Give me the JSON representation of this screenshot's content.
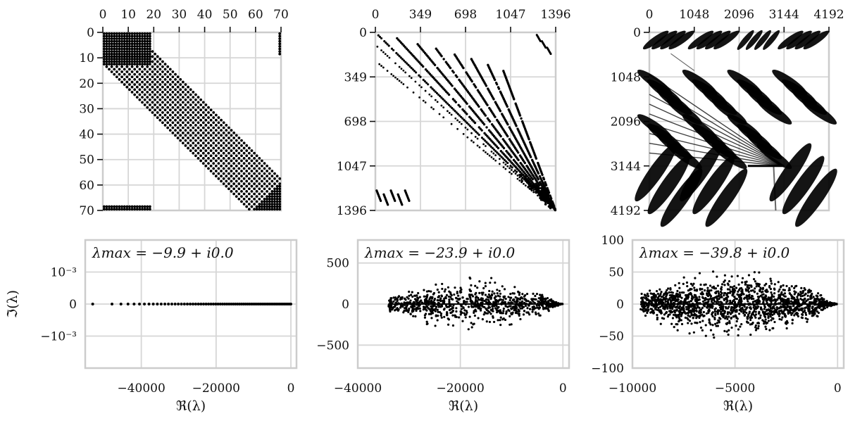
{
  "chart_data": [
    {
      "type": "heatmap",
      "subtype": "sparsity-pattern",
      "n": 70,
      "x_ticks": [
        "0",
        "10",
        "20",
        "30",
        "40",
        "50",
        "60",
        "70"
      ],
      "y_ticks": [
        "0",
        "10",
        "20",
        "30",
        "40",
        "50",
        "60",
        "70"
      ],
      "tick_values": [
        0,
        10,
        20,
        30,
        40,
        50,
        60,
        70
      ],
      "x_tick_position": "top",
      "nonzero_blocks": [
        {
          "rows": [
            0,
            12
          ],
          "cols": [
            0,
            18
          ]
        },
        {
          "band_center_offset": 0,
          "halfwidth": 13,
          "rows": [
            0,
            70
          ]
        },
        {
          "rows": [
            60,
            70
          ],
          "cols": [
            60,
            70
          ]
        },
        {
          "rows": [
            68,
            70
          ],
          "cols": [
            0,
            18
          ]
        },
        {
          "rows": [
            0,
            8
          ],
          "cols": [
            69,
            70
          ]
        }
      ],
      "grid": true
    },
    {
      "type": "heatmap",
      "subtype": "sparsity-pattern",
      "n": 1396,
      "x_ticks": [
        "0",
        "349",
        "698",
        "1047",
        "1396"
      ],
      "y_ticks": [
        "0",
        "349",
        "698",
        "1047",
        "1396"
      ],
      "tick_values": [
        0,
        349,
        698,
        1047,
        1396
      ],
      "x_tick_position": "top",
      "diagonals": 8,
      "grid": true
    },
    {
      "type": "heatmap",
      "subtype": "sparsity-pattern",
      "n": 4192,
      "x_ticks": [
        "0",
        "1048",
        "2096",
        "3144",
        "4192"
      ],
      "y_ticks": [
        "0",
        "1048",
        "2096",
        "3144",
        "4192"
      ],
      "tick_values": [
        0,
        1048,
        2096,
        3144,
        4192
      ],
      "x_tick_position": "top",
      "blocks": 4,
      "grid": true
    },
    {
      "type": "scatter",
      "annotation": "λmax = −9.9 + i0.0",
      "xlabel": "ℜ(λ)",
      "ylabel": "ℑ(λ)",
      "xlim": [
        -55000,
        1500
      ],
      "ylim": [
        -0.002,
        0.002
      ],
      "x_ticks": [
        -40000,
        -20000,
        0
      ],
      "x_tick_labels": [
        "−40000",
        "−20000",
        "0"
      ],
      "y_ticks": [
        0.001,
        0,
        -0.001
      ],
      "y_tick_labels": [
        "10⁻³",
        "0",
        "−10⁻³"
      ],
      "x_range_points": [
        -53000,
        -10
      ],
      "y_value": 0,
      "point_count": 70,
      "grid": true
    },
    {
      "type": "scatter",
      "annotation": "λmax = −23.9 + i0.0",
      "xlabel": "ℜ(λ)",
      "ylabel": "",
      "xlim": [
        -40000,
        1200
      ],
      "ylim": [
        -780,
        780
      ],
      "x_ticks": [
        -40000,
        -20000,
        0
      ],
      "x_tick_labels": [
        "−40000",
        "−20000",
        "0"
      ],
      "y_ticks": [
        500,
        0,
        -500
      ],
      "y_tick_labels": [
        "500",
        "0",
        "−500"
      ],
      "x_range_points": [
        -34000,
        -24
      ],
      "y_max_abs": 370,
      "point_count": 1396,
      "grid": true
    },
    {
      "type": "scatter",
      "annotation": "λmax = −39.8 + i0.0",
      "xlabel": "ℜ(λ)",
      "ylabel": "",
      "xlim": [
        -10000,
        300
      ],
      "ylim": [
        -100,
        100
      ],
      "x_ticks": [
        -10000,
        -5000,
        0
      ],
      "x_tick_labels": [
        "−10000",
        "−5000",
        "0"
      ],
      "y_ticks": [
        100,
        50,
        0,
        -50,
        -100
      ],
      "y_tick_labels": [
        "100",
        "50",
        "0",
        "−50",
        "−100"
      ],
      "x_range_points": [
        -9600,
        -40
      ],
      "y_max_abs": 60,
      "point_count": 4192,
      "grid": true
    }
  ]
}
